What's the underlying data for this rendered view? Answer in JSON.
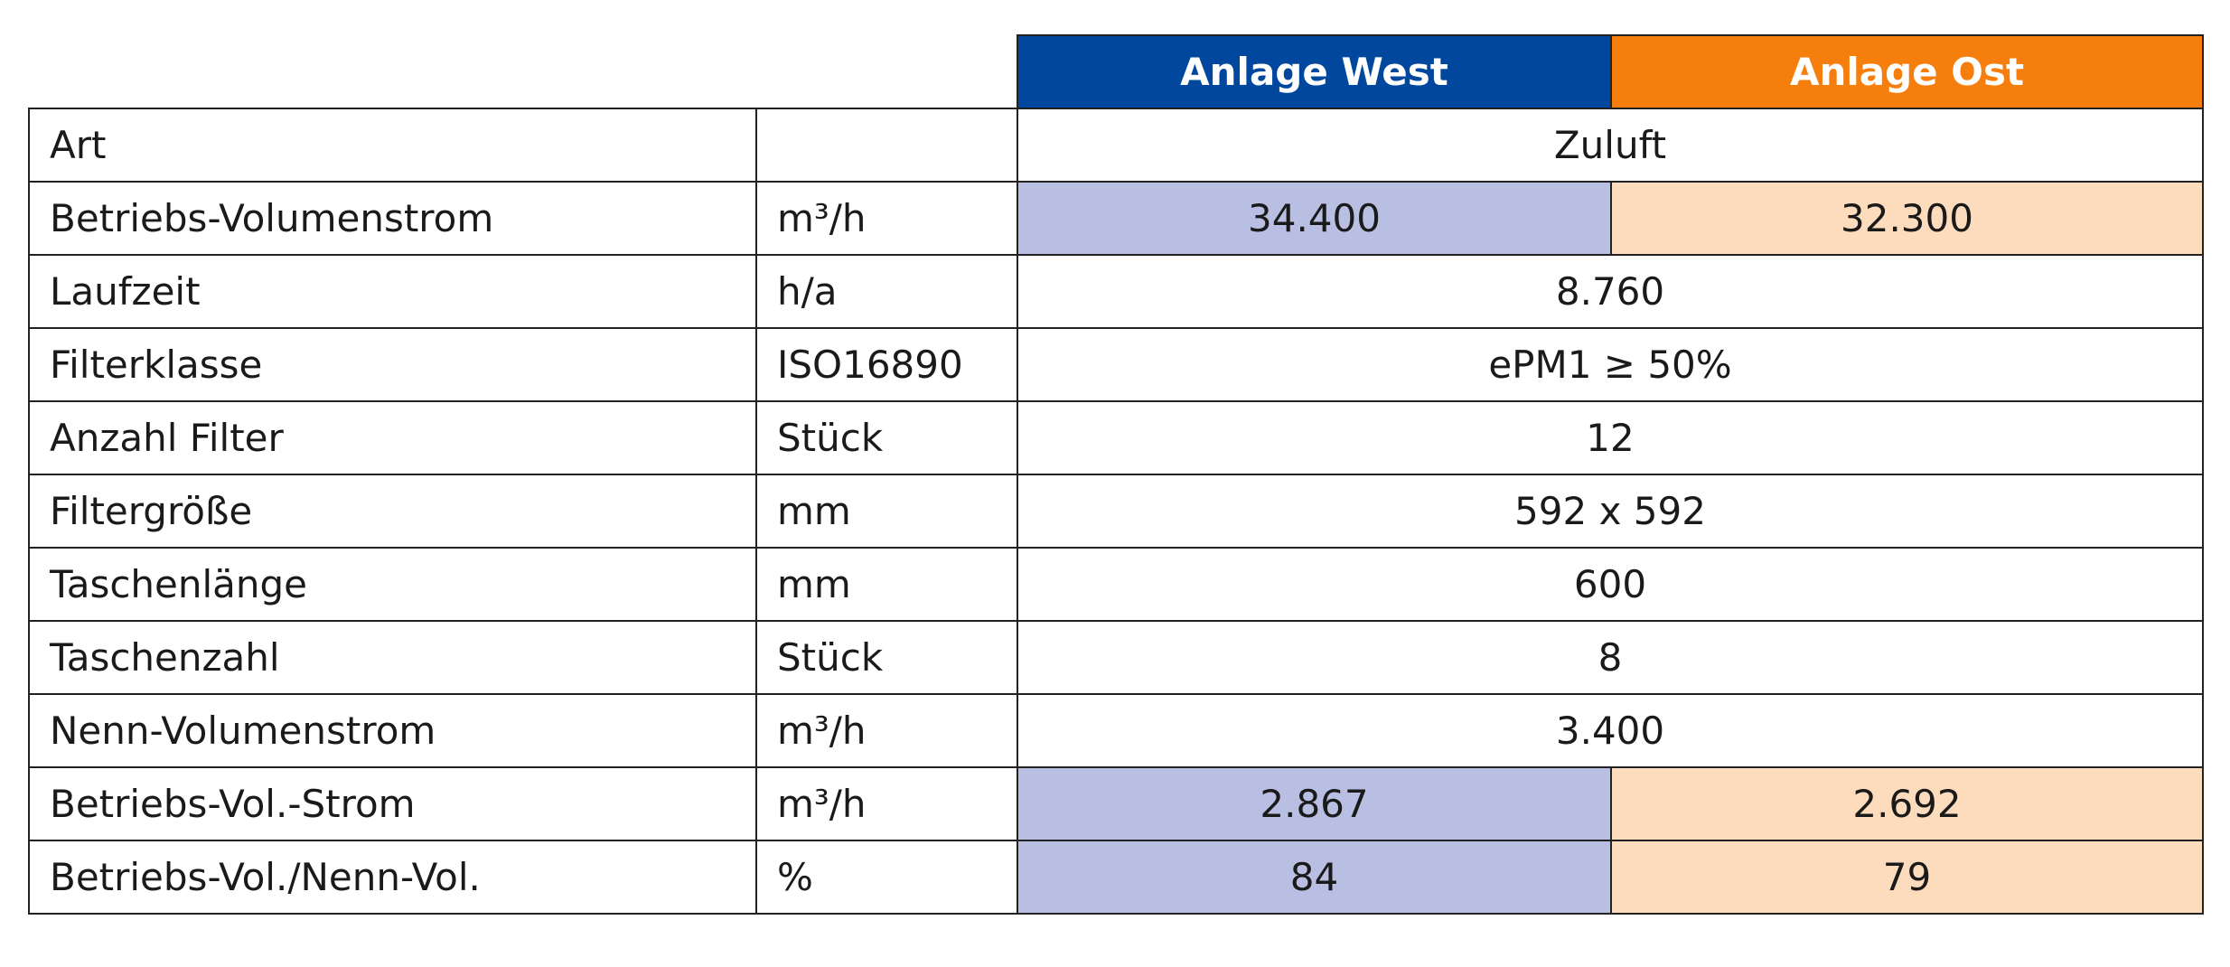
{
  "table": {
    "header": [
      "Anlage West",
      "Anlage Ost"
    ],
    "rows": [
      {
        "label": "Art",
        "values": [
          "Zuluft"
        ]
      },
      {
        "label": "Betriebs-Volumenstrom",
        "unit": "m³/h",
        "values": [
          "34.400",
          "32.300"
        ]
      },
      {
        "label": "Laufzeit",
        "unit": "h/a",
        "values": [
          "8.760"
        ]
      },
      {
        "label": "Filterklasse",
        "unit": "ISO16890",
        "values": [
          "ePM1 ≥ 50%"
        ]
      },
      {
        "label": "Anzahl Filter",
        "unit": "Stück",
        "values": [
          "12"
        ]
      },
      {
        "label": "Filtergröße",
        "unit": "mm",
        "values": [
          "592 x 592"
        ]
      },
      {
        "label": "Taschenlänge",
        "unit": "mm",
        "values": [
          "600"
        ]
      },
      {
        "label": "Taschenzahl",
        "unit": "Stück",
        "values": [
          "8"
        ]
      },
      {
        "label": "Nenn-Volumenstrom",
        "unit": "m³/h",
        "values": [
          "3.400"
        ]
      },
      {
        "label": "Betriebs-Vol.-Strom",
        "unit": "m³/h",
        "values": [
          "2.867",
          "2.692"
        ]
      },
      {
        "label": "Betriebs-Vol./Nenn-Vol.",
        "unit": "%",
        "values": [
          "84",
          "79"
        ]
      }
    ]
  }
}
